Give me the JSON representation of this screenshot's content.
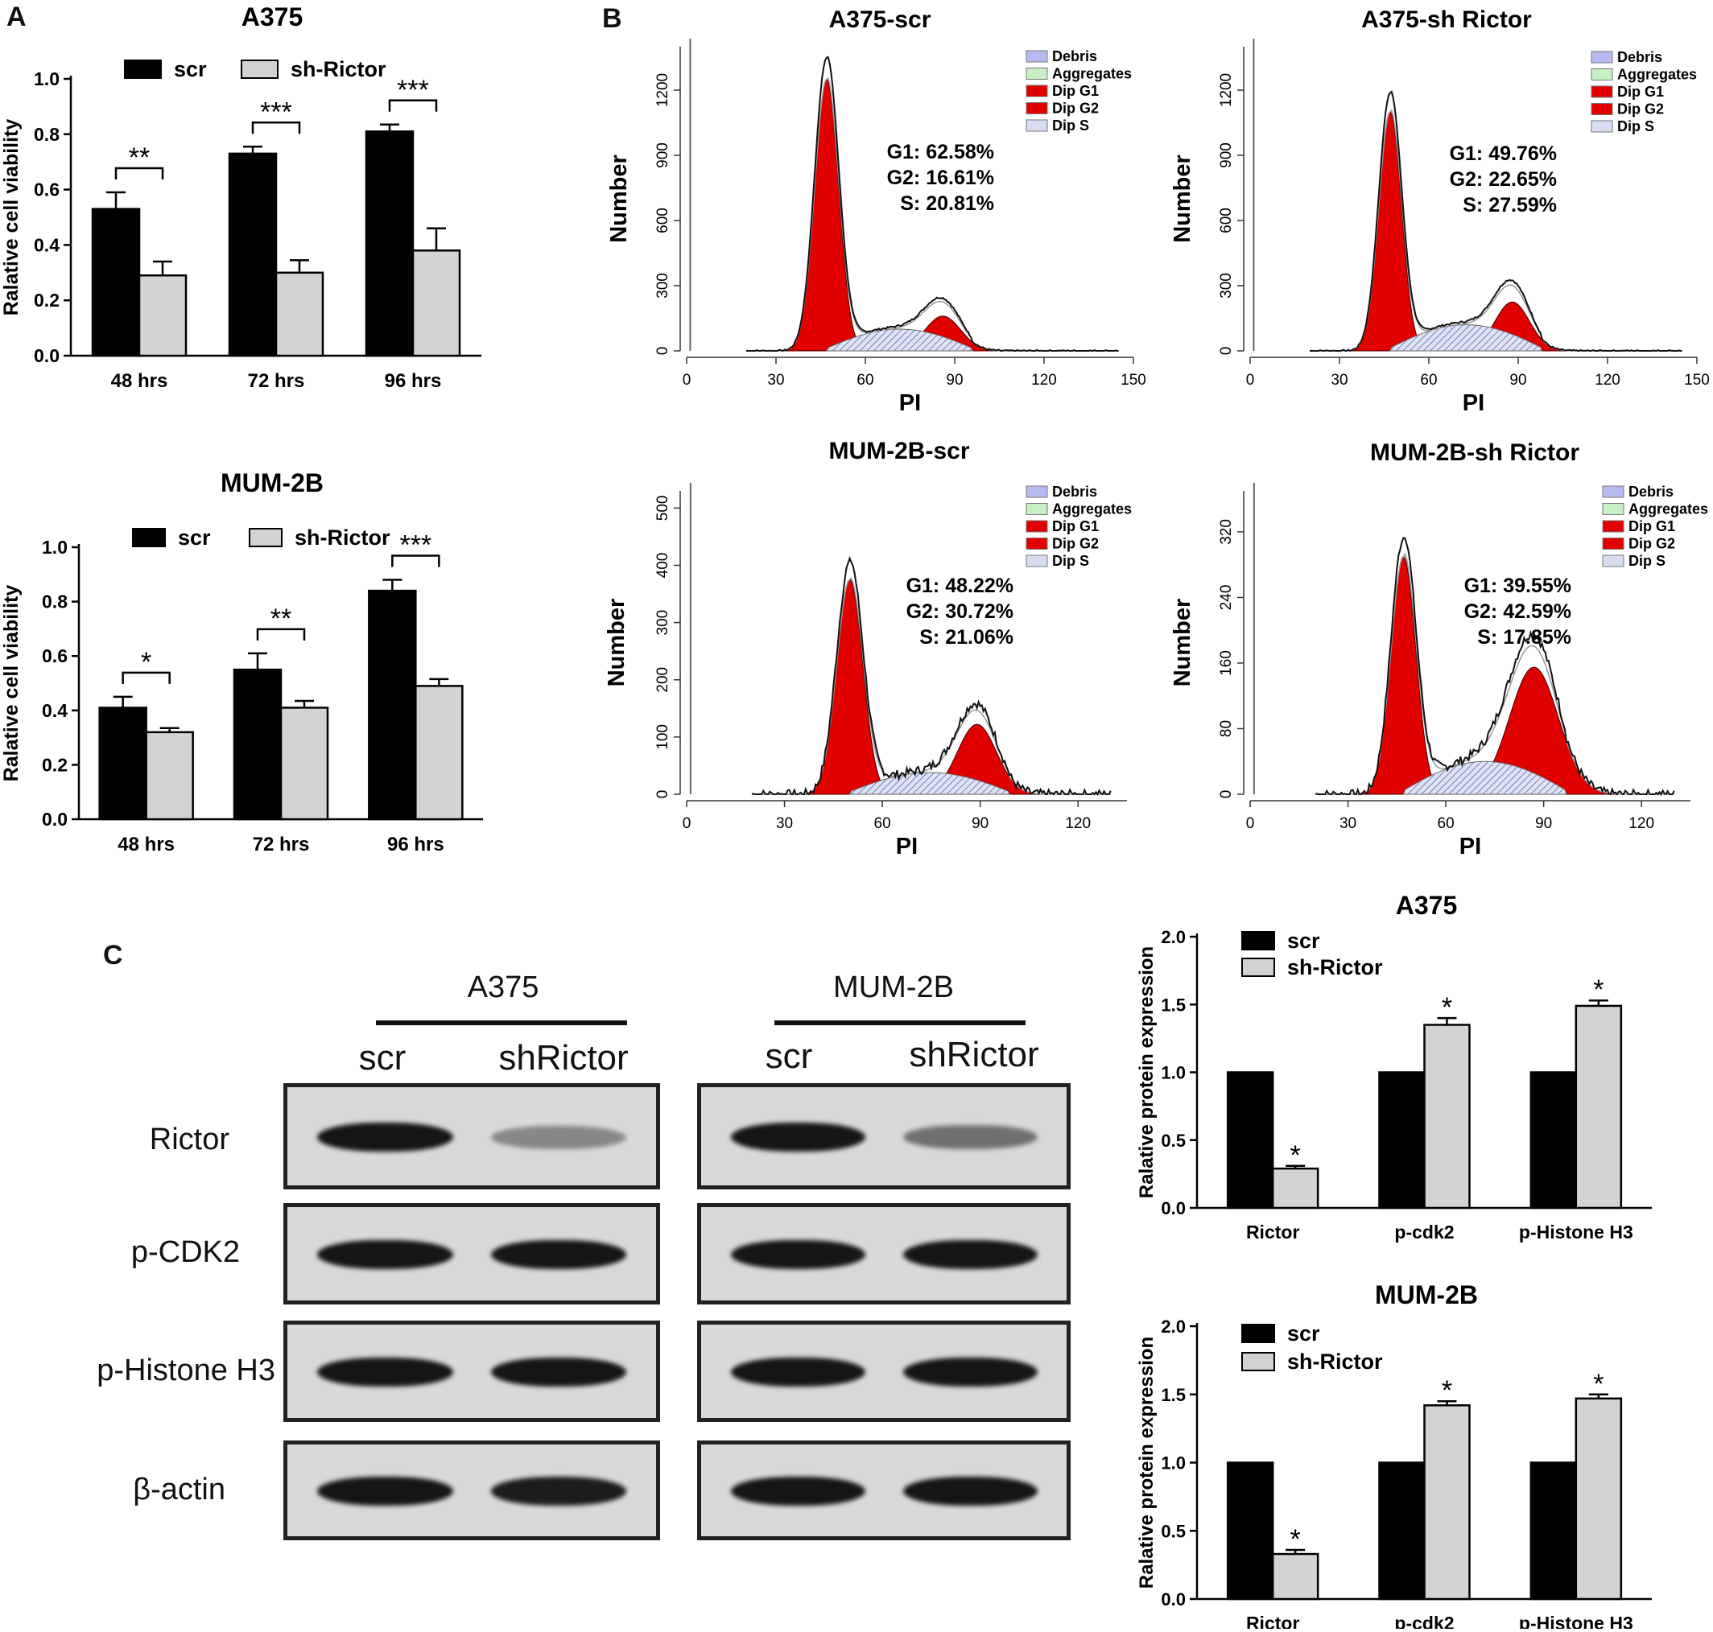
{
  "panels": {
    "a": "A",
    "b": "B",
    "c": "C"
  },
  "chart_data": [
    {
      "id": "a-a375",
      "type": "bar",
      "title": "A375",
      "ylabel": "Ralative cell viability",
      "xlabel": "",
      "categories": [
        "48 hrs",
        "72 hrs",
        "96 hrs"
      ],
      "ylim": [
        0,
        1.0
      ],
      "yticks": [
        "0.0",
        "0.2",
        "0.4",
        "0.6",
        "0.8",
        "1.0"
      ],
      "series": [
        {
          "name": "scr",
          "values": [
            0.53,
            0.73,
            0.81
          ],
          "errors": [
            0.06,
            0.025,
            0.025
          ],
          "color": "#000000"
        },
        {
          "name": "sh-Rictor",
          "values": [
            0.29,
            0.3,
            0.38
          ],
          "errors": [
            0.05,
            0.045,
            0.08
          ],
          "color": "#d3d3d3"
        }
      ],
      "significance": [
        "**",
        "***",
        "***"
      ],
      "legend": "top"
    },
    {
      "id": "a-mum",
      "type": "bar",
      "title": "MUM-2B",
      "ylabel": "Ralative cell viability",
      "xlabel": "",
      "categories": [
        "48 hrs",
        "72 hrs",
        "96 hrs"
      ],
      "ylim": [
        0,
        1.0
      ],
      "yticks": [
        "0.0",
        "0.2",
        "0.4",
        "0.6",
        "0.8",
        "1.0"
      ],
      "series": [
        {
          "name": "scr",
          "values": [
            0.41,
            0.55,
            0.84
          ],
          "errors": [
            0.04,
            0.06,
            0.04
          ],
          "color": "#000000"
        },
        {
          "name": "sh-Rictor",
          "values": [
            0.32,
            0.41,
            0.49
          ],
          "errors": [
            0.015,
            0.025,
            0.025
          ],
          "color": "#d3d3d3"
        }
      ],
      "significance": [
        "*",
        "**",
        "***"
      ],
      "legend": "top"
    },
    {
      "id": "b1",
      "type": "area",
      "title": "A375-scr",
      "xlabel": "PI",
      "ylabel": "Number",
      "xlim": [
        0,
        150
      ],
      "xticks": [
        0,
        30,
        60,
        90,
        120,
        150
      ],
      "yticks": [
        0,
        300,
        600,
        900,
        1200
      ],
      "ylim": [
        0,
        1400
      ],
      "legend": [
        "Debris",
        "Aggregates",
        "Dip G1",
        "Dip G2",
        "Dip S"
      ],
      "stats": [
        "G1: 62.58%",
        "G2: 16.61%",
        "S: 20.81%"
      ],
      "g1": {
        "mu": 47,
        "sigma": 4,
        "peak": 1250
      },
      "g2": {
        "mu": 86,
        "sigma": 6,
        "peak": 160
      },
      "s_peak": 100,
      "jagged": false
    },
    {
      "id": "b2",
      "type": "area",
      "title": "A375-sh Rictor",
      "xlabel": "PI",
      "ylabel": "Number",
      "xlim": [
        0,
        150
      ],
      "xticks": [
        0,
        30,
        60,
        90,
        120,
        150
      ],
      "yticks": [
        0,
        300,
        600,
        900,
        1200
      ],
      "ylim": [
        0,
        1400
      ],
      "legend": [
        "Debris",
        "Aggregates",
        "Dip G1",
        "Dip G2",
        "Dip S"
      ],
      "stats": [
        "G1: 49.76%",
        "G2: 22.65%",
        "S: 27.59%"
      ],
      "g1": {
        "mu": 47,
        "sigma": 3.8,
        "peak": 1100
      },
      "g2": {
        "mu": 88,
        "sigma": 5.8,
        "peak": 225
      },
      "s_peak": 120,
      "jagged": false
    },
    {
      "id": "b3",
      "type": "area",
      "title": "MUM-2B-scr",
      "xlabel": "PI",
      "ylabel": "Number",
      "xlim": [
        0,
        135
      ],
      "xticks": [
        0,
        30,
        60,
        90,
        120
      ],
      "yticks": [
        0,
        100,
        200,
        300,
        400,
        500
      ],
      "ylim": [
        0,
        530
      ],
      "legend": [
        "Debris",
        "Aggregates",
        "Dip G1",
        "Dip G2",
        "Dip S"
      ],
      "stats": [
        "G1: 48.22%",
        "G2: 30.72%",
        "S: 21.06%"
      ],
      "g1": {
        "mu": 50,
        "sigma": 4,
        "peak": 375
      },
      "g2": {
        "mu": 89,
        "sigma": 6,
        "peak": 122
      },
      "s_peak": 38,
      "jagged": true
    },
    {
      "id": "b4",
      "type": "area",
      "title": "MUM-2B-sh Rictor",
      "xlabel": "PI",
      "ylabel": "Number",
      "xlim": [
        0,
        135
      ],
      "xticks": [
        0,
        30,
        60,
        90,
        120
      ],
      "yticks": [
        0,
        80,
        160,
        240,
        320
      ],
      "ylim": [
        0,
        370
      ],
      "legend": [
        "Debris",
        "Aggregates",
        "Dip G1",
        "Dip G2",
        "Dip S"
      ],
      "stats": [
        "G1: 39.55%",
        "G2: 42.59%",
        "S: 17.85%"
      ],
      "g1": {
        "mu": 47,
        "sigma": 3.8,
        "peak": 290
      },
      "g2": {
        "mu": 87,
        "sigma": 7.5,
        "peak": 155
      },
      "s_peak": 40,
      "jagged": true
    },
    {
      "id": "c-a375",
      "type": "bar",
      "title": "A375",
      "ylabel": "Ralative protein expression",
      "xlabel": "",
      "categories": [
        "Rictor",
        "p-cdk2",
        "p-Histone H3"
      ],
      "ylim": [
        0,
        2.0
      ],
      "yticks": [
        "0.0",
        "0.5",
        "1.0",
        "1.5",
        "2.0"
      ],
      "series": [
        {
          "name": "scr",
          "values": [
            1.0,
            1.0,
            1.0
          ],
          "errors": [
            0,
            0,
            0
          ],
          "color": "#000000"
        },
        {
          "name": "sh-Rictor",
          "values": [
            0.29,
            1.35,
            1.49
          ],
          "errors": [
            0.02,
            0.05,
            0.04
          ],
          "color": "#d3d3d3"
        }
      ],
      "significance": [
        "*",
        "*",
        "*"
      ],
      "legend": "top-left"
    },
    {
      "id": "c-mum",
      "type": "bar",
      "title": "MUM-2B",
      "ylabel": "Ralative protein expression",
      "xlabel": "",
      "categories": [
        "Rictor",
        "p-cdk2",
        "p-Histone H3"
      ],
      "ylim": [
        0,
        2.0
      ],
      "yticks": [
        "0.0",
        "0.5",
        "1.0",
        "1.5",
        "2.0"
      ],
      "series": [
        {
          "name": "scr",
          "values": [
            1.0,
            1.0,
            1.0
          ],
          "errors": [
            0,
            0,
            0
          ],
          "color": "#000000"
        },
        {
          "name": "sh-Rictor",
          "values": [
            0.33,
            1.42,
            1.47
          ],
          "errors": [
            0.03,
            0.03,
            0.03
          ],
          "color": "#d3d3d3"
        }
      ],
      "significance": [
        "*",
        "*",
        "*"
      ],
      "legend": "top-left"
    }
  ],
  "western": {
    "groups": [
      "A375",
      "MUM-2B"
    ],
    "lanes": [
      "scr",
      "shRictor"
    ],
    "proteins": [
      "Rictor",
      "p-CDK2",
      "p-Histone H3",
      "β-actin"
    ],
    "intensity": {
      "A375": [
        [
          1.0,
          0.3
        ],
        [
          1.0,
          1.0
        ],
        [
          1.0,
          1.0
        ],
        [
          1.0,
          0.95
        ]
      ],
      "MUM-2B": [
        [
          1.0,
          0.45
        ],
        [
          1.0,
          1.0
        ],
        [
          1.0,
          1.0
        ],
        [
          1.0,
          1.0
        ]
      ]
    }
  }
}
